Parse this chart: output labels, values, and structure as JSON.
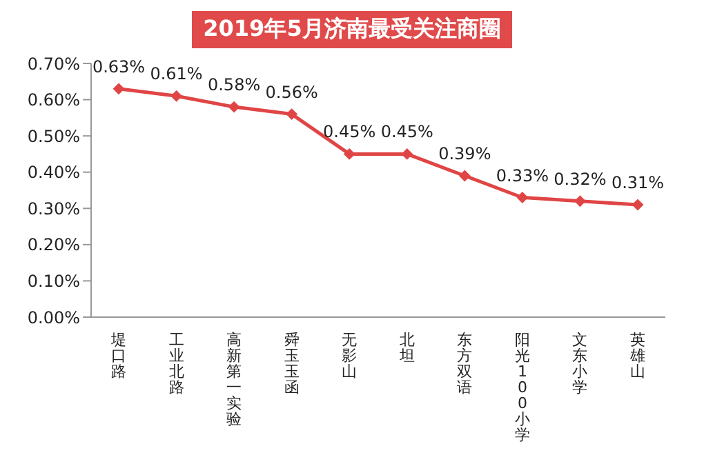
{
  "chart_data": {
    "type": "line",
    "title": "2019年5月济南最受关注商圈",
    "categories": [
      "堤口路",
      "工业北路",
      "高新第一实验",
      "舜玉玉函",
      "无影山",
      "北坦",
      "东方双语",
      "阳光100小学",
      "文东小学",
      "英雄山"
    ],
    "series": [
      {
        "color": "#e04545",
        "values": [
          0.63,
          0.61,
          0.58,
          0.56,
          0.45,
          0.45,
          0.39,
          0.33,
          0.32,
          0.31
        ],
        "value_labels": [
          "0.63%",
          "0.61%",
          "0.58%",
          "0.56%",
          "0.45%",
          "0.45%",
          "0.39%",
          "0.33%",
          "0.32%",
          "0.31%"
        ]
      }
    ],
    "ylim": [
      0,
      0.7
    ],
    "yticks": [
      {
        "value": 0,
        "label": "0.00%"
      },
      {
        "value": 0.1,
        "label": "0.10%"
      },
      {
        "value": 0.2,
        "label": "0.20%"
      },
      {
        "value": 0.3,
        "label": "0.30%"
      },
      {
        "value": 0.4,
        "label": "0.40%"
      },
      {
        "value": 0.5,
        "label": "0.50%"
      },
      {
        "value": 0.6,
        "label": "0.60%"
      },
      {
        "value": 0.7,
        "label": "0.70%"
      }
    ],
    "grid": false,
    "legend": false,
    "marker": "diamond",
    "line_style": "solid"
  }
}
